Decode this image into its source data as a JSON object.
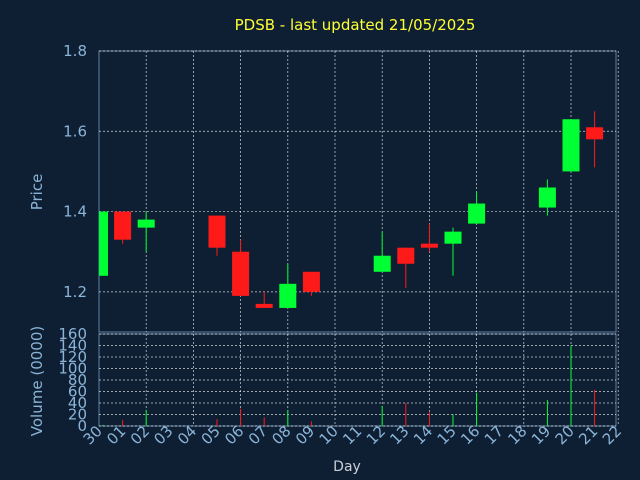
{
  "chart_data": [
    {
      "type": "candlestick",
      "title": "PDSB - last updated 21/05/2025",
      "ylabel": "Price",
      "ylim": [
        1.1,
        1.8
      ],
      "yticks": [
        "1.2",
        "1.4",
        "1.6",
        "1.8"
      ],
      "grid": true,
      "colors": {
        "up": "#00ff33",
        "down": "#ff1a1a",
        "title": "#ffff33",
        "axis_text": "#8ab4d8",
        "background": "#0f1f33",
        "grid": "#ffffff"
      },
      "x": [
        "30",
        "01",
        "02",
        "03",
        "04",
        "05",
        "06",
        "07",
        "08",
        "09",
        "10",
        "11",
        "12",
        "13",
        "14",
        "15",
        "16",
        "17",
        "18",
        "19",
        "20",
        "21",
        "22"
      ],
      "candles": [
        {
          "day": "30",
          "open": 1.24,
          "high": 1.4,
          "low": 1.24,
          "close": 1.4
        },
        {
          "day": "01",
          "open": 1.4,
          "high": 1.4,
          "low": 1.32,
          "close": 1.33
        },
        {
          "day": "02",
          "open": 1.36,
          "high": 1.4,
          "low": 1.3,
          "close": 1.38
        },
        {
          "day": "05",
          "open": 1.39,
          "high": 1.39,
          "low": 1.29,
          "close": 1.31
        },
        {
          "day": "06",
          "open": 1.3,
          "high": 1.33,
          "low": 1.19,
          "close": 1.19
        },
        {
          "day": "07",
          "open": 1.17,
          "high": 1.2,
          "low": 1.16,
          "close": 1.16
        },
        {
          "day": "08",
          "open": 1.16,
          "high": 1.27,
          "low": 1.16,
          "close": 1.22
        },
        {
          "day": "09",
          "open": 1.25,
          "high": 1.25,
          "low": 1.19,
          "close": 1.2
        },
        {
          "day": "12",
          "open": 1.25,
          "high": 1.35,
          "low": 1.25,
          "close": 1.29
        },
        {
          "day": "13",
          "open": 1.31,
          "high": 1.31,
          "low": 1.21,
          "close": 1.27
        },
        {
          "day": "14",
          "open": 1.32,
          "high": 1.37,
          "low": 1.3,
          "close": 1.31
        },
        {
          "day": "15",
          "open": 1.32,
          "high": 1.36,
          "low": 1.24,
          "close": 1.35
        },
        {
          "day": "16",
          "open": 1.37,
          "high": 1.45,
          "low": 1.37,
          "close": 1.42
        },
        {
          "day": "19",
          "open": 1.41,
          "high": 1.48,
          "low": 1.39,
          "close": 1.46
        },
        {
          "day": "20",
          "open": 1.5,
          "high": 1.63,
          "low": 1.5,
          "close": 1.63
        },
        {
          "day": "21",
          "open": 1.61,
          "high": 1.65,
          "low": 1.51,
          "close": 1.58
        }
      ]
    },
    {
      "type": "bar",
      "ylabel": "Volume (0000)",
      "xlabel": "Day",
      "ylim": [
        0,
        160
      ],
      "yticks": [
        "0",
        "20",
        "40",
        "60",
        "80",
        "100",
        "120",
        "140",
        "160"
      ],
      "grid": true,
      "categories": [
        "30",
        "01",
        "02",
        "05",
        "06",
        "07",
        "08",
        "09",
        "12",
        "13",
        "14",
        "15",
        "16",
        "19",
        "20",
        "21"
      ],
      "values": [
        2,
        10,
        28,
        12,
        30,
        15,
        28,
        8,
        35,
        40,
        25,
        20,
        58,
        45,
        140,
        63
      ],
      "direction": [
        "up",
        "down",
        "up",
        "down",
        "down",
        "down",
        "up",
        "down",
        "up",
        "down",
        "down",
        "up",
        "up",
        "up",
        "up",
        "down"
      ]
    }
  ]
}
